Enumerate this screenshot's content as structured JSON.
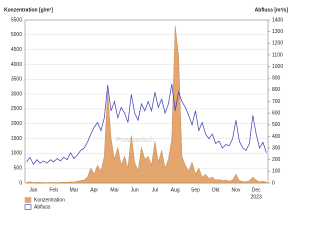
{
  "chart_data": {
    "type": "combo",
    "y_label": "Konzentration [g/m³]",
    "y2_label": "Abfluss [m³/s]",
    "watermark": "Provisorisch",
    "year_label": "2023",
    "categories": [
      null,
      null,
      "Jan",
      null,
      null,
      null,
      null,
      null,
      "Feb",
      null,
      null,
      null,
      null,
      null,
      "Mar",
      null,
      null,
      null,
      null,
      null,
      "Apr",
      null,
      null,
      null,
      null,
      null,
      "Mai",
      null,
      null,
      null,
      null,
      null,
      "Jun",
      null,
      null,
      null,
      null,
      null,
      "Jul",
      null,
      null,
      null,
      null,
      null,
      "Aug",
      null,
      null,
      null,
      null,
      null,
      "Sep",
      null,
      null,
      null,
      null,
      null,
      "Okt",
      null,
      null,
      null,
      null,
      null,
      "Nov",
      null,
      null,
      null,
      null,
      null,
      "Dec",
      null,
      null,
      null
    ],
    "series": [
      {
        "name": "Konzentration",
        "type": "area",
        "color": "#e3a66e",
        "values": [
          20,
          40,
          10,
          30,
          20,
          15,
          10,
          20,
          15,
          10,
          20,
          30,
          20,
          40,
          30,
          60,
          80,
          100,
          200,
          500,
          300,
          600,
          400,
          900,
          3100,
          1500,
          800,
          1200,
          600,
          900,
          500,
          1600,
          700,
          400,
          1200,
          800,
          900,
          600,
          1400,
          700,
          1100,
          500,
          800,
          1500,
          5300,
          4300,
          900,
          600,
          400,
          700,
          300,
          500,
          200,
          300,
          150,
          200,
          100,
          120,
          80,
          100,
          60,
          100,
          300,
          80,
          50,
          40,
          80,
          200,
          100,
          40,
          60,
          30
        ]
      },
      {
        "name": "Abfluss",
        "type": "line",
        "axis": "y2",
        "color": "#3c3cb4",
        "values": [
          180,
          220,
          160,
          200,
          170,
          190,
          170,
          200,
          180,
          210,
          190,
          220,
          200,
          260,
          210,
          240,
          280,
          300,
          350,
          420,
          480,
          520,
          450,
          560,
          840,
          620,
          700,
          560,
          650,
          600,
          520,
          760,
          600,
          540,
          680,
          620,
          700,
          620,
          780,
          650,
          720,
          600,
          680,
          850,
          620,
          780,
          700,
          650,
          580,
          500,
          620,
          450,
          520,
          420,
          380,
          420,
          340,
          360,
          300,
          330,
          320,
          380,
          540,
          360,
          300,
          280,
          340,
          580,
          420,
          300,
          350,
          260
        ]
      }
    ],
    "ylim": [
      0,
      5500
    ],
    "yticks": [
      0,
      500,
      1000,
      1500,
      2000,
      2500,
      3000,
      3500,
      4000,
      4500,
      5000,
      5500
    ],
    "y2lim": [
      0,
      1400
    ],
    "y2ticks": [
      0,
      100,
      200,
      300,
      400,
      500,
      600,
      700,
      800,
      900,
      1000,
      1100,
      1200,
      1300,
      1400
    ],
    "grid": true
  }
}
